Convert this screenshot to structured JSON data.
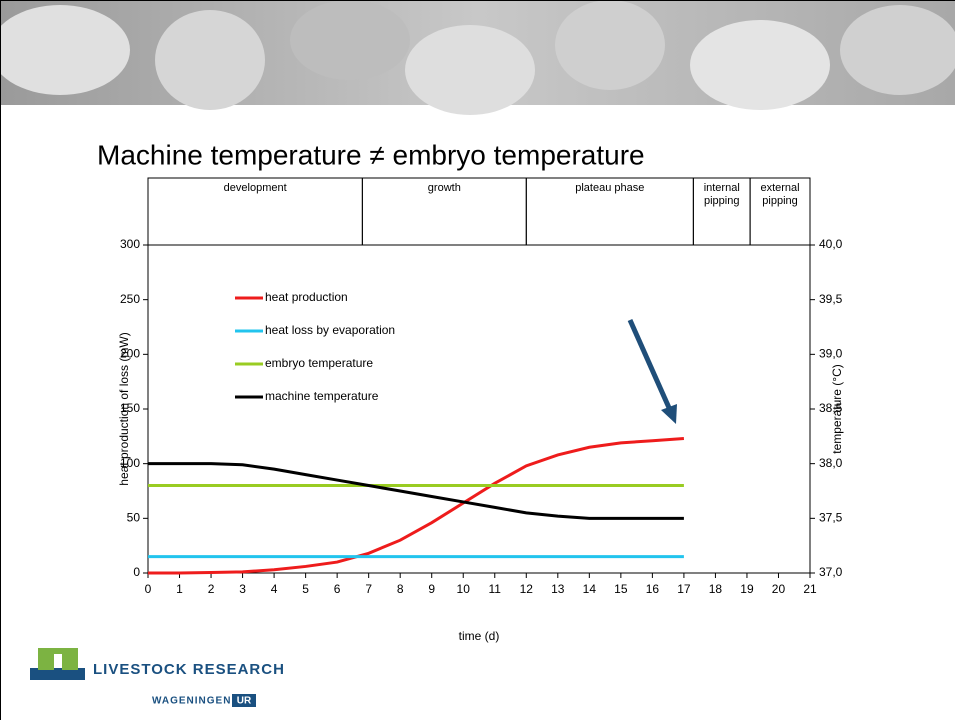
{
  "title": "Machine temperature ≠ embryo temperature",
  "logo": {
    "name": "LIVESTOCK RESEARCH",
    "org": "WAGENINGEN",
    "badge": "UR"
  },
  "chart_data": {
    "type": "line",
    "phases": [
      {
        "label": "development",
        "start": 0,
        "end": 6.8
      },
      {
        "label": "growth",
        "start": 6.8,
        "end": 12
      },
      {
        "label": "plateau phase",
        "start": 12,
        "end": 17.3
      },
      {
        "label": "internal pipping",
        "start": 17.3,
        "end": 19.1
      },
      {
        "label": "external pipping",
        "start": 19.1,
        "end": 21
      }
    ],
    "x_label": "time (d)",
    "y_label": "heat production of loss (mW)",
    "y2_label": "temperature (°C)",
    "x": [
      0,
      1,
      2,
      3,
      4,
      5,
      6,
      7,
      8,
      9,
      10,
      11,
      12,
      13,
      14,
      15,
      16,
      17
    ],
    "xlim": [
      0,
      21
    ],
    "xticks": [
      0,
      1,
      2,
      3,
      4,
      5,
      6,
      7,
      8,
      9,
      10,
      11,
      12,
      13,
      14,
      15,
      16,
      17,
      18,
      19,
      20,
      21
    ],
    "ylim": [
      0,
      300
    ],
    "yticks": [
      0,
      50,
      100,
      150,
      200,
      250,
      300
    ],
    "y2lim": [
      37.0,
      40.0
    ],
    "y2ticks": [
      {
        "value": 37.0,
        "label": "37,0"
      },
      {
        "value": 37.5,
        "label": "37,5"
      },
      {
        "value": 38.0,
        "label": "38,0"
      },
      {
        "value": 38.5,
        "label": "38,5"
      },
      {
        "value": 39.0,
        "label": "39,0"
      },
      {
        "value": 39.5,
        "label": "39,5"
      },
      {
        "value": 40.0,
        "label": "40,0"
      }
    ],
    "legend": "upper left",
    "series": [
      {
        "name": "heat production",
        "color": "#ee1c1c",
        "values": [
          0,
          0,
          0.5,
          1,
          3,
          6,
          10,
          18,
          30,
          46,
          64,
          82,
          98,
          108,
          115,
          119,
          121,
          123
        ]
      },
      {
        "name": "heat loss by evaporation",
        "color": "#22c4ee",
        "values": [
          15,
          15,
          15,
          15,
          15,
          15,
          15,
          15,
          15,
          15,
          15,
          15,
          15,
          15,
          15,
          15,
          15,
          15
        ]
      },
      {
        "name": "embryo temperature",
        "color": "#99cc22",
        "axis": "y2",
        "values": [
          37.8,
          37.8,
          37.8,
          37.8,
          37.8,
          37.8,
          37.8,
          37.8,
          37.8,
          37.8,
          37.8,
          37.8,
          37.8,
          37.8,
          37.8,
          37.8,
          37.8,
          37.8
        ]
      },
      {
        "name": "machine temperature",
        "color": "#000000",
        "axis": "y2",
        "values": [
          38.0,
          38.0,
          38.0,
          37.99,
          37.95,
          37.9,
          37.85,
          37.8,
          37.75,
          37.7,
          37.65,
          37.6,
          37.55,
          37.52,
          37.5,
          37.5,
          37.5,
          37.5
        ]
      }
    ]
  }
}
